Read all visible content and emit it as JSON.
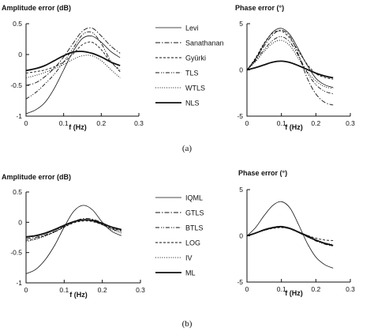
{
  "captions": [
    "(a)",
    "(b)"
  ],
  "legends": [
    [
      "Levi",
      "Sanathanan",
      "Gyürki",
      "TLS",
      "WTLS",
      "NLS"
    ],
    [
      "IQML",
      "GTLS",
      "BTLS",
      "LOG",
      "IV",
      "ML"
    ]
  ],
  "chart_data": [
    {
      "id": "a-amplitude",
      "type": "line",
      "title": "Amplitude error (dB)",
      "xlabel": "f (Hz)",
      "ylabel": "",
      "xlim": [
        0,
        0.3
      ],
      "ylim": [
        -1,
        0.5
      ],
      "xticks": [
        "0",
        "0.1",
        "0.2",
        "0.3"
      ],
      "yticks": [
        "0.5",
        "0",
        "-0.5",
        "-1"
      ],
      "legend": "right",
      "x": [
        0,
        0.025,
        0.05,
        0.075,
        0.1,
        0.125,
        0.15,
        0.175,
        0.2,
        0.225,
        0.25
      ],
      "series": [
        {
          "name": "Levi",
          "style": "thin",
          "values": [
            -0.96,
            -0.9,
            -0.78,
            -0.55,
            -0.25,
            0.05,
            0.26,
            0.3,
            0.2,
            0.05,
            -0.05
          ]
        },
        {
          "name": "Sanathanan",
          "style": "dashdot",
          "values": [
            -0.5,
            -0.46,
            -0.36,
            -0.22,
            -0.04,
            0.18,
            0.38,
            0.43,
            0.3,
            0.14,
            0.02
          ]
        },
        {
          "name": "Gyürki",
          "style": "dashed",
          "values": [
            -0.3,
            -0.28,
            -0.25,
            -0.2,
            -0.12,
            0.01,
            0.16,
            0.2,
            0.08,
            -0.12,
            -0.25
          ]
        },
        {
          "name": "TLS",
          "style": "dashdotdot",
          "values": [
            -0.72,
            -0.62,
            -0.48,
            -0.32,
            -0.12,
            0.1,
            0.32,
            0.36,
            0.18,
            -0.1,
            -0.28
          ]
        },
        {
          "name": "WTLS",
          "style": "dotted",
          "values": [
            -0.38,
            -0.34,
            -0.29,
            -0.23,
            -0.16,
            -0.08,
            -0.02,
            -0.02,
            -0.1,
            -0.24,
            -0.38
          ]
        },
        {
          "name": "NLS",
          "style": "bold",
          "values": [
            -0.26,
            -0.23,
            -0.18,
            -0.1,
            -0.02,
            0.04,
            0.05,
            0.02,
            -0.04,
            -0.12,
            -0.18
          ]
        }
      ]
    },
    {
      "id": "a-phase",
      "type": "line",
      "title": "Phase error (°)",
      "xlabel": "f (Hz)",
      "ylabel": "",
      "xlim": [
        0,
        0.3
      ],
      "ylim": [
        -5,
        5
      ],
      "xticks": [
        "0",
        "0.1",
        "0.2",
        "0.3"
      ],
      "yticks": [
        "5",
        "0",
        "-5"
      ],
      "legend": "none",
      "x": [
        0,
        0.025,
        0.05,
        0.075,
        0.1,
        0.125,
        0.15,
        0.175,
        0.2,
        0.225,
        0.25
      ],
      "series": [
        {
          "name": "Levi",
          "style": "thin",
          "values": [
            0,
            1.2,
            2.8,
            4.1,
            4.5,
            3.8,
            2.2,
            0.5,
            -0.9,
            -1.6,
            -1.9
          ]
        },
        {
          "name": "Sanathanan",
          "style": "dashdot",
          "values": [
            0,
            1.1,
            2.6,
            3.8,
            4.3,
            3.6,
            1.6,
            -0.9,
            -2.6,
            -3.5,
            -3.8
          ]
        },
        {
          "name": "Gyürki",
          "style": "dashed",
          "values": [
            0,
            1.3,
            2.9,
            4.0,
            4.2,
            3.4,
            2.0,
            0.6,
            -0.4,
            -0.8,
            -1.0
          ]
        },
        {
          "name": "TLS",
          "style": "dashdotdot",
          "values": [
            0,
            1.0,
            2.2,
            3.2,
            3.6,
            3.0,
            1.5,
            -0.3,
            -1.6,
            -2.3,
            -2.6
          ]
        },
        {
          "name": "WTLS",
          "style": "dotted",
          "values": [
            0,
            0.9,
            2.0,
            2.9,
            3.2,
            2.6,
            1.2,
            -0.2,
            -1.2,
            -1.8,
            -2.0
          ]
        },
        {
          "name": "NLS",
          "style": "bold",
          "values": [
            0,
            0.25,
            0.55,
            0.85,
            0.95,
            0.8,
            0.45,
            0.05,
            -0.35,
            -0.65,
            -0.85
          ]
        }
      ]
    },
    {
      "id": "b-amplitude",
      "type": "line",
      "title": "Amplitude error (dB)",
      "xlabel": "f (Hz)",
      "ylabel": "",
      "xlim": [
        0,
        0.3
      ],
      "ylim": [
        -1,
        0.5
      ],
      "xticks": [
        "0",
        "0.1",
        "0.2",
        "0.3"
      ],
      "yticks": [
        "0.5",
        "0",
        "-0.5",
        "-1"
      ],
      "legend": "right",
      "x": [
        0,
        0.025,
        0.05,
        0.075,
        0.1,
        0.125,
        0.15,
        0.175,
        0.2,
        0.225,
        0.25
      ],
      "series": [
        {
          "name": "IQML",
          "style": "thin",
          "values": [
            -0.85,
            -0.78,
            -0.62,
            -0.38,
            -0.08,
            0.18,
            0.28,
            0.2,
            0.0,
            -0.15,
            -0.22
          ]
        },
        {
          "name": "GTLS",
          "style": "dashdot",
          "values": [
            -0.27,
            -0.25,
            -0.21,
            -0.15,
            -0.07,
            0.01,
            0.06,
            0.05,
            -0.01,
            -0.08,
            -0.13
          ]
        },
        {
          "name": "BTLS",
          "style": "dashdotdot",
          "values": [
            -0.25,
            -0.23,
            -0.19,
            -0.13,
            -0.06,
            0.01,
            0.04,
            0.02,
            -0.04,
            -0.11,
            -0.16
          ]
        },
        {
          "name": "LOG",
          "style": "dashed",
          "values": [
            -0.3,
            -0.27,
            -0.22,
            -0.16,
            -0.08,
            -0.01,
            0.02,
            0.01,
            -0.04,
            -0.1,
            -0.14
          ]
        },
        {
          "name": "IV",
          "style": "dotted",
          "values": [
            -0.32,
            -0.28,
            -0.23,
            -0.16,
            -0.08,
            0.0,
            0.04,
            0.02,
            -0.04,
            -0.12,
            -0.18
          ]
        },
        {
          "name": "ML",
          "style": "bold",
          "values": [
            -0.24,
            -0.22,
            -0.18,
            -0.12,
            -0.05,
            0.01,
            0.04,
            0.03,
            -0.02,
            -0.08,
            -0.12
          ]
        }
      ]
    },
    {
      "id": "b-phase",
      "type": "line",
      "title": "Phase error (°)",
      "xlabel": "f (Hz)",
      "ylabel": "",
      "xlim": [
        0,
        0.3
      ],
      "ylim": [
        -5,
        5
      ],
      "xticks": [
        "0",
        "0.1",
        "0.2",
        "0.3"
      ],
      "yticks": [
        "5",
        "0",
        "-5"
      ],
      "legend": "none",
      "x": [
        0,
        0.025,
        0.05,
        0.075,
        0.1,
        0.125,
        0.15,
        0.175,
        0.2,
        0.225,
        0.25
      ],
      "series": [
        {
          "name": "IQML",
          "style": "thin",
          "values": [
            0,
            0.9,
            2.2,
            3.3,
            3.7,
            3.0,
            1.2,
            -0.8,
            -2.3,
            -3.1,
            -3.5
          ]
        },
        {
          "name": "GTLS",
          "style": "dashdot",
          "values": [
            0,
            0.3,
            0.6,
            0.85,
            0.95,
            0.75,
            0.35,
            -0.1,
            -0.5,
            -0.8,
            -1.0
          ]
        },
        {
          "name": "BTLS",
          "style": "dashdotdot",
          "values": [
            0,
            0.3,
            0.6,
            0.85,
            0.95,
            0.75,
            0.35,
            -0.1,
            -0.55,
            -0.9,
            -1.1
          ]
        },
        {
          "name": "LOG",
          "style": "dashed",
          "values": [
            0,
            0.3,
            0.6,
            0.8,
            0.9,
            0.75,
            0.4,
            0.05,
            -0.25,
            -0.45,
            -0.5
          ]
        },
        {
          "name": "IV",
          "style": "dotted",
          "values": [
            0,
            0.3,
            0.6,
            0.85,
            0.95,
            0.75,
            0.35,
            -0.05,
            -0.45,
            -0.75,
            -0.95
          ]
        },
        {
          "name": "ML",
          "style": "bold",
          "values": [
            0,
            0.3,
            0.65,
            0.9,
            1.0,
            0.8,
            0.4,
            0.0,
            -0.45,
            -0.8,
            -1.05
          ]
        }
      ]
    }
  ]
}
